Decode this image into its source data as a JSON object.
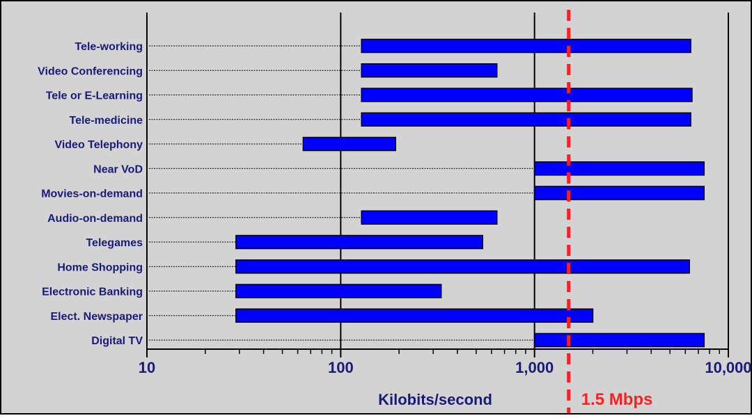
{
  "chart_data": {
    "type": "bar",
    "subtype": "floating-horizontal-range",
    "x_scale": "log",
    "xlim": [
      10,
      10000
    ],
    "x_ticks": [
      10,
      100,
      1000,
      10000
    ],
    "x_tick_labels": [
      "10",
      "100",
      "1,000",
      "10,000"
    ],
    "xlabel": "Kilobits/second",
    "grid": "vertical major gridlines at decades",
    "categories": [
      "Tele-working",
      "Video Conferencing",
      "Tele or E-Learning",
      "Tele-medicine",
      "Video Telephony",
      "Near VoD",
      "Movies-on-demand",
      "Audio-on-demand",
      "Telegames",
      "Home Shopping",
      "Electronic Banking",
      "Elect. Newspaper",
      "Digital TV"
    ],
    "ranges": [
      [
        128,
        6400
      ],
      [
        128,
        640
      ],
      [
        128,
        6500
      ],
      [
        128,
        6400
      ],
      [
        64,
        192
      ],
      [
        1000,
        7500
      ],
      [
        1000,
        7500
      ],
      [
        128,
        640
      ],
      [
        28.8,
        540
      ],
      [
        28.8,
        6300
      ],
      [
        28.8,
        330
      ],
      [
        28.8,
        2000
      ],
      [
        1000,
        7500
      ]
    ],
    "reference_line": {
      "value": 1500,
      "label": "1.5 Mbps",
      "color": "#ff2020",
      "style": "dashed"
    },
    "colors": {
      "background": "#d3d3d3",
      "bar_fill": "#0000ff",
      "bar_stroke": "#000000",
      "label_text": "#1a1a7a",
      "reference": "#ff2020"
    }
  }
}
